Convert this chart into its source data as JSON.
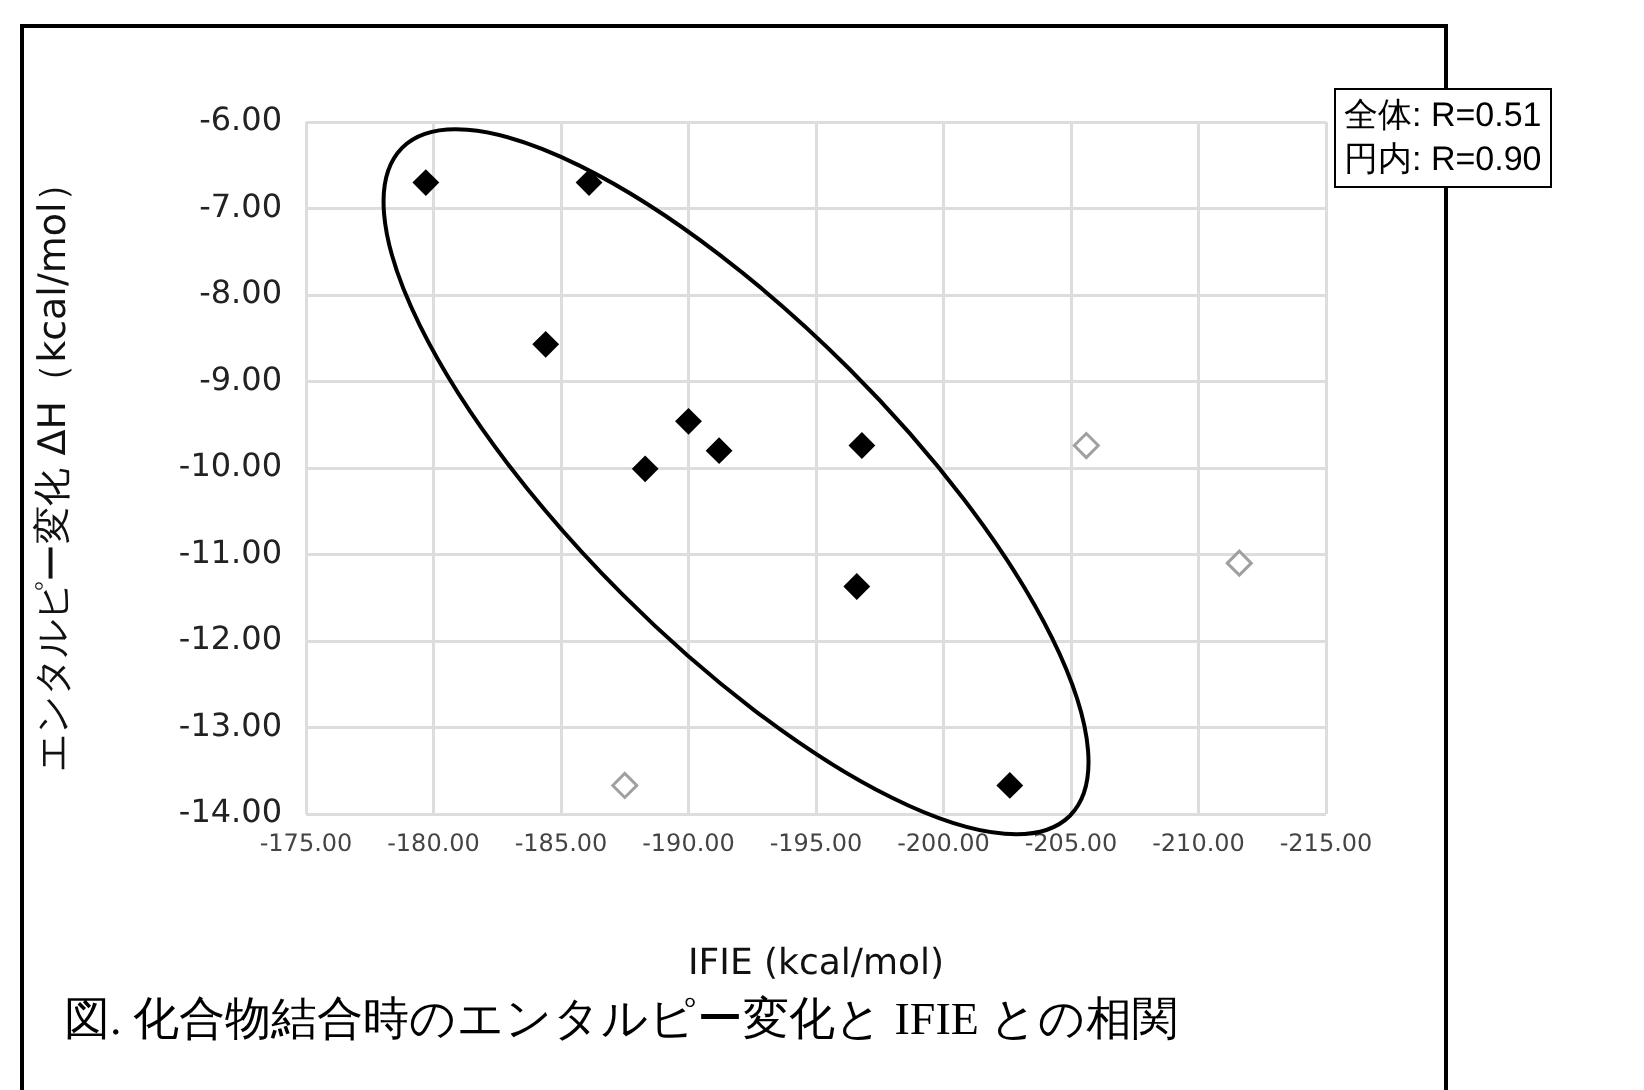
{
  "chart_data": {
    "type": "scatter",
    "xlabel": "IFIE (kcal/mol)",
    "ylabel": "エンタルピー変化 ΔH（kcal/mol）",
    "xlim": [
      -175,
      -215
    ],
    "ylim": [
      -14,
      -6
    ],
    "xticks": [
      {
        "value": -175,
        "label": "-175.00"
      },
      {
        "value": -180,
        "label": "-180.00"
      },
      {
        "value": -185,
        "label": "-185.00"
      },
      {
        "value": -190,
        "label": "-190.00"
      },
      {
        "value": -195,
        "label": "-195.00"
      },
      {
        "value": -200,
        "label": "-200.00"
      },
      {
        "value": -205,
        "label": "-205.00"
      },
      {
        "value": -210,
        "label": "-210.00"
      },
      {
        "value": -215,
        "label": "-215.00"
      }
    ],
    "yticks": [
      {
        "value": -6,
        "label": "-6.00"
      },
      {
        "value": -7,
        "label": "-7.00"
      },
      {
        "value": -8,
        "label": "-8.00"
      },
      {
        "value": -9,
        "label": "-9.00"
      },
      {
        "value": -10,
        "label": "-10.00"
      },
      {
        "value": -11,
        "label": "-11.00"
      },
      {
        "value": -12,
        "label": "-12.00"
      },
      {
        "value": -13,
        "label": "-13.00"
      },
      {
        "value": -14,
        "label": "-14.00"
      }
    ],
    "series": [
      {
        "color": "#000000",
        "x": [
          -179.7,
          -186.1,
          -184.4,
          -190.0,
          -191.2,
          -188.3,
          -196.8,
          -196.6,
          -202.6
        ],
        "values": [
          -6.7,
          -6.7,
          -8.57,
          -9.46,
          -9.8,
          -10.01,
          -9.74,
          -11.37,
          -13.67
        ]
      },
      {
        "color": "#a0a0a0",
        "x": [
          -205.6,
          -211.6,
          -187.5
        ],
        "values": [
          -9.74,
          -11.1,
          -13.67
        ]
      }
    ],
    "marker": "diamond",
    "grid": true,
    "legend": false,
    "annotations": [
      "全体: R=0.51",
      "円内: R=0.90",
      "図. 化合物結合時のエンタルピー変化と IFIE との相関"
    ]
  }
}
